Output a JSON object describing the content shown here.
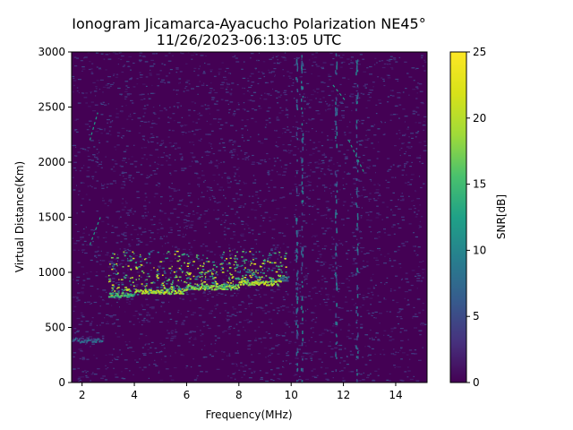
{
  "chart_data": {
    "type": "heatmap",
    "title": "Ionogram Jicamarca-Ayacucho Polarization NE45°",
    "subtitle": "11/26/2023-06:13:05 UTC",
    "xlabel": "Frequency(MHz)",
    "ylabel": "Virtual Distance(Km)",
    "xlim": [
      1.6,
      15.2
    ],
    "ylim": [
      0,
      3000
    ],
    "x_ticks": [
      2,
      4,
      6,
      8,
      10,
      12,
      14
    ],
    "x_tick_labels": [
      "2",
      "4",
      "6",
      "8",
      "10",
      "12",
      "14"
    ],
    "y_ticks": [
      0,
      500,
      1000,
      1500,
      2000,
      2500,
      3000
    ],
    "y_tick_labels": [
      "0",
      "500",
      "1000",
      "1500",
      "2000",
      "2500",
      "3000"
    ],
    "colorbar": {
      "label": "SNR[dB]",
      "range": [
        0,
        25
      ],
      "ticks": [
        0,
        5,
        10,
        15,
        20,
        25
      ],
      "tick_labels": [
        "0",
        "5",
        "10",
        "15",
        "20",
        "25"
      ],
      "colormap": "viridis"
    },
    "background_snr_db": 1,
    "traces": [
      {
        "x_start": 1.6,
        "x_end": 2.8,
        "y": 390,
        "snr_db": 9
      },
      {
        "x_start": 3.0,
        "x_end": 4.0,
        "y": 800,
        "snr_db": 17
      },
      {
        "x_start": 4.0,
        "x_end": 6.0,
        "y": 830,
        "snr_db": 22
      },
      {
        "x_start": 6.0,
        "x_end": 8.0,
        "y": 870,
        "snr_db": 21
      },
      {
        "x_start": 8.0,
        "x_end": 9.6,
        "y": 910,
        "snr_db": 22
      },
      {
        "x_start": 9.6,
        "x_end": 9.9,
        "y": 950,
        "snr_db": 10
      }
    ],
    "spread_band": {
      "x_start": 3.0,
      "x_end": 9.8,
      "y_low": 780,
      "y_high": 1200
    },
    "vertical_streaks_mhz": [
      10.2,
      10.4,
      11.7,
      12.5
    ],
    "diagonal_streaks": [
      {
        "x_from": 2.3,
        "y_from": 1250,
        "x_to": 2.7,
        "y_to": 1500
      },
      {
        "x_from": 2.3,
        "y_from": 2200,
        "x_to": 2.6,
        "y_to": 2450
      },
      {
        "x_from": 12.2,
        "y_from": 2200,
        "x_to": 12.8,
        "y_to": 1900
      },
      {
        "x_from": 11.6,
        "y_from": 2700,
        "x_to": 12.1,
        "y_to": 2550
      }
    ]
  }
}
